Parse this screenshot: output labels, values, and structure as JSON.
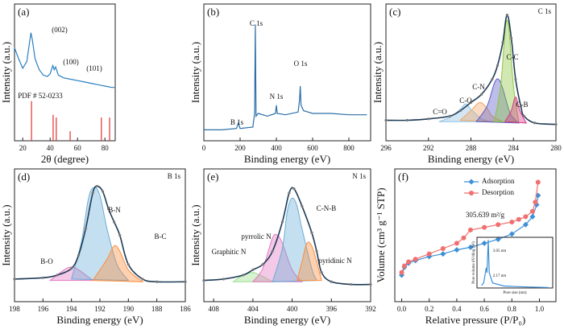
{
  "chart_data": [
    {
      "type": "line",
      "label": "(a)",
      "xlabel": "2θ (degree)",
      "ylabel": "Intensity (a.u.)",
      "xlim": [
        14,
        87.5
      ],
      "ylim": [
        0,
        100
      ],
      "xticks": [
        20,
        40,
        60,
        80
      ],
      "annotations": [
        "(002)",
        "(100)",
        "(101)",
        "PDF # 52-0233"
      ],
      "series": [
        {
          "color": "#2a7fc0",
          "x": [
            14,
            17,
            20,
            23,
            25,
            26,
            27,
            29,
            32,
            35,
            38,
            40,
            42,
            43,
            44,
            46,
            50,
            55,
            60,
            65,
            70,
            75,
            80,
            85,
            87
          ],
          "values": [
            68,
            60,
            53,
            58,
            72,
            79,
            74,
            60,
            52,
            48,
            47,
            49,
            55,
            52,
            54,
            48,
            46,
            45,
            44,
            43,
            42,
            41,
            40,
            39,
            39
          ]
        },
        {
          "color": "#e03030",
          "style": "stick",
          "x": [
            26.4,
            42.2,
            44.5,
            54.6,
            77.4,
            83.4
          ],
          "values": [
            29,
            19,
            17,
            7,
            17,
            17
          ]
        }
      ]
    },
    {
      "type": "line",
      "label": "(b)",
      "xlabel": "Binding energy (eV)",
      "ylabel": "Intensity (a.u.)",
      "xlim": [
        0,
        920
      ],
      "ylim": [
        0,
        100
      ],
      "xticks": [
        0,
        200,
        400,
        600,
        800
      ],
      "annotations": [
        "C 1s",
        "N 1s",
        "O 1s",
        "B 1s"
      ],
      "series": [
        {
          "color": "#2b6ea8",
          "x": [
            0,
            100,
            180,
            190,
            200,
            270,
            280,
            284,
            288,
            300,
            350,
            395,
            400,
            405,
            450,
            520,
            528,
            532,
            536,
            550,
            600,
            700,
            800,
            900
          ],
          "values": [
            8,
            8,
            9,
            13,
            9,
            10,
            20,
            85,
            18,
            20,
            18,
            20,
            26,
            20,
            19,
            21,
            30,
            40,
            26,
            22,
            20,
            20,
            19,
            19
          ]
        }
      ]
    },
    {
      "type": "line",
      "label": "(c)",
      "subtitle": "C 1s",
      "xlabel": "Binding energy (eV)",
      "ylabel": "Intensity (a.u.)",
      "xlim": [
        296,
        280
      ],
      "ylim": [
        0,
        100
      ],
      "xticks": [
        296,
        292,
        288,
        284,
        280
      ],
      "smooth": true,
      "series": [
        {
          "name": "C=O",
          "color": "#8fc1e3",
          "style": "peak",
          "x": [
            291,
            290,
            289,
            288.5,
            288,
            287,
            286
          ],
          "values": [
            14,
            17,
            23,
            27,
            23,
            16,
            14
          ]
        },
        {
          "name": "C-O",
          "color": "#f0a868",
          "style": "peak",
          "x": [
            289,
            288,
            287.2,
            286.5,
            286,
            285
          ],
          "values": [
            15,
            22,
            28,
            24,
            18,
            14
          ]
        },
        {
          "name": "C-N",
          "color": "#5b5bc8",
          "style": "peak",
          "x": [
            287.5,
            286.5,
            285.8,
            285.4,
            285,
            284.3,
            283.5
          ],
          "values": [
            14,
            25,
            42,
            45,
            38,
            20,
            13
          ]
        },
        {
          "name": "C-C",
          "color": "#8cc63f",
          "style": "peak",
          "x": [
            285.8,
            285.2,
            284.8,
            284.6,
            284.4,
            284,
            283.5
          ],
          "values": [
            14,
            40,
            80,
            88,
            80,
            40,
            14
          ]
        },
        {
          "name": "C-B",
          "color": "#d9368b",
          "style": "peak",
          "x": [
            284.8,
            284.2,
            283.8,
            283.4,
            282.8
          ],
          "values": [
            14,
            22,
            32,
            22,
            13
          ]
        },
        {
          "color": "#1f3b57",
          "markers": true,
          "x": [
            296,
            294,
            292,
            290,
            289,
            288,
            287,
            286,
            285.5,
            285,
            284.6,
            284.2,
            283.8,
            283.3,
            283,
            282,
            280
          ],
          "values": [
            15,
            15,
            16,
            18,
            22,
            28,
            34,
            45,
            55,
            72,
            92,
            75,
            45,
            25,
            18,
            13,
            12
          ]
        }
      ]
    },
    {
      "type": "line",
      "label": "(d)",
      "subtitle": "B 1s",
      "xlabel": "Binding energy (eV)",
      "ylabel": "Intensity (a.u.)",
      "xlim": [
        198,
        186
      ],
      "ylim": [
        0,
        100
      ],
      "xticks": [
        198,
        196,
        194,
        192,
        190,
        188,
        186
      ],
      "smooth": true,
      "series": [
        {
          "name": "B-O",
          "color": "#e377c2",
          "style": "peak",
          "x": [
            195.5,
            194.5,
            194,
            193.5,
            192.5
          ],
          "values": [
            16,
            24,
            26,
            24,
            16
          ]
        },
        {
          "name": "B-N",
          "color": "#6baed6",
          "style": "peak",
          "x": [
            194,
            193.3,
            192.8,
            192.4,
            192,
            191.5,
            190.8,
            190
          ],
          "values": [
            17,
            45,
            78,
            86,
            80,
            55,
            28,
            16
          ]
        },
        {
          "name": "B-C",
          "color": "#fd8d3c",
          "style": "peak",
          "x": [
            192.5,
            191.5,
            191,
            190.6,
            190,
            189
          ],
          "values": [
            16,
            32,
            42,
            38,
            24,
            15
          ]
        },
        {
          "color": "#1f3b57",
          "markers": true,
          "x": [
            198,
            196,
            195,
            194,
            193.5,
            193,
            192.5,
            192.2,
            191.8,
            191.4,
            191,
            190.6,
            190,
            189,
            188,
            186
          ],
          "values": [
            17,
            18,
            20,
            25,
            35,
            55,
            82,
            87,
            83,
            70,
            60,
            50,
            28,
            17,
            15,
            15
          ]
        }
      ]
    },
    {
      "type": "line",
      "label": "(e)",
      "subtitle": "N 1s",
      "xlabel": "Binding energy (eV)",
      "ylabel": "Intensity (a.u.)",
      "xlim": [
        409,
        392
      ],
      "ylim": [
        0,
        100
      ],
      "xticks": [
        408,
        404,
        400,
        396,
        392
      ],
      "smooth": true,
      "series": [
        {
          "name": "Graphitic N",
          "color": "#98df8a",
          "style": "peak",
          "x": [
            406,
            405,
            404,
            403,
            402
          ],
          "values": [
            15,
            20,
            22,
            19,
            15
          ]
        },
        {
          "name": "pyrrolic N",
          "color": "#e377c2",
          "style": "peak",
          "x": [
            404,
            403,
            402,
            401.5,
            401,
            400,
            399
          ],
          "values": [
            15,
            25,
            48,
            50,
            44,
            24,
            15
          ]
        },
        {
          "name": "C-N-B",
          "color": "#6baed6",
          "style": "peak",
          "x": [
            402,
            401,
            400.5,
            400,
            399.5,
            399,
            398,
            397.5
          ],
          "values": [
            15,
            40,
            68,
            78,
            72,
            55,
            25,
            16
          ]
        },
        {
          "name": "pyridinic N",
          "color": "#fd8d3c",
          "style": "peak",
          "x": [
            399.5,
            399,
            398.5,
            398,
            397.5,
            397
          ],
          "values": [
            16,
            30,
            44,
            42,
            30,
            16
          ]
        },
        {
          "color": "#1f3b57",
          "markers": true,
          "x": [
            409,
            407,
            405,
            404,
            403,
            402,
            401,
            400.3,
            399.8,
            399,
            398,
            397.5,
            397,
            396,
            394,
            392
          ],
          "values": [
            16,
            17,
            20,
            24,
            28,
            38,
            60,
            82,
            85,
            72,
            52,
            38,
            22,
            15,
            13,
            13
          ]
        }
      ]
    },
    {
      "type": "line",
      "label": "(f)",
      "xlabel": "Relative pressure (P/P₀)",
      "ylabel": "Volume (cm³ g⁻¹ STP)",
      "xlim": [
        -0.05,
        1.12
      ],
      "ylim": [
        0,
        100
      ],
      "xticks": [
        {
          "value": 0,
          "label": "0.0"
        },
        0.2,
        0.4,
        0.6,
        0.8,
        {
          "value": 1,
          "label": "1.0"
        }
      ],
      "annotations": [
        "305.639 m²/g"
      ],
      "series": [
        {
          "name": "Adsorption",
          "color": "#3d8fd6",
          "marker": "diamond",
          "x": [
            0,
            0.02,
            0.05,
            0.1,
            0.2,
            0.3,
            0.4,
            0.5,
            0.6,
            0.7,
            0.8,
            0.9,
            0.95,
            0.98,
            0.99
          ],
          "values": [
            20,
            26,
            29,
            31,
            34,
            36,
            39,
            41,
            44,
            47,
            51,
            58,
            64,
            73,
            80
          ]
        },
        {
          "name": "Desorption",
          "color": "#f07070",
          "marker": "circle",
          "x": [
            0.99,
            0.97,
            0.95,
            0.9,
            0.85,
            0.8,
            0.7,
            0.6,
            0.5,
            0.45,
            0.4,
            0.3,
            0.2,
            0.1,
            0.05,
            0.02,
            0
          ],
          "values": [
            90,
            75,
            68,
            64,
            62,
            60,
            58,
            56,
            54,
            48,
            44,
            40,
            36,
            32,
            30,
            27,
            22
          ]
        }
      ],
      "inset": {
        "xlabel": "Pore size (nm)",
        "ylabel": "Pore volume dV/dlog (W)",
        "xlim": [
          -2,
          32
        ],
        "ylim": [
          0,
          100
        ],
        "annotations": [
          "3.05 nm",
          "2.17 nm"
        ],
        "series": [
          {
            "color": "#3d8fd6",
            "x": [
              0,
              1,
              2.17,
              2.5,
              3.05,
              3.5,
              5,
              10,
              20,
              30
            ],
            "values": [
              5,
              10,
              40,
              30,
              95,
              30,
              10,
              4,
              2,
              1
            ]
          }
        ]
      }
    }
  ]
}
